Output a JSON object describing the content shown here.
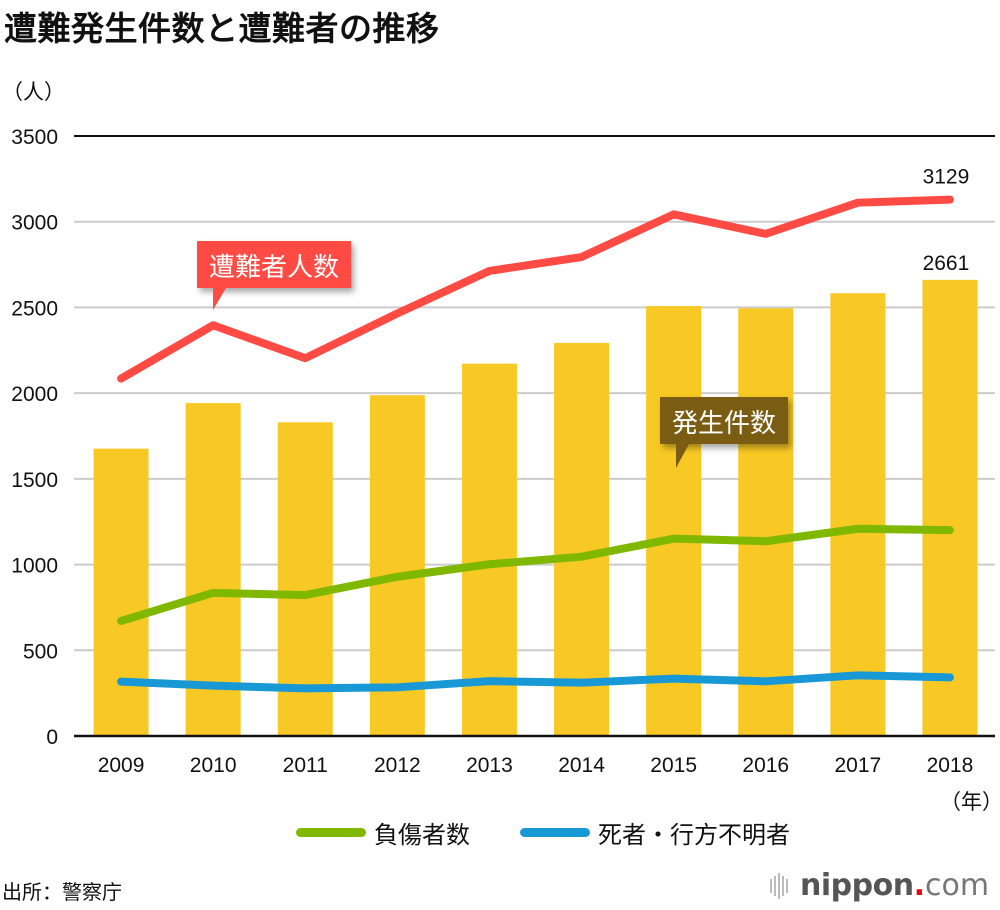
{
  "title": "遭難発生件数と遭難者の推移",
  "y_unit": "（人）",
  "x_unit": "（年）",
  "source": "出所：警察庁",
  "logo": {
    "name": "nippon",
    "dot": ".",
    "suffix": "com",
    "icon": "sound-bars-icon"
  },
  "colors": {
    "bars": "#f8c924",
    "victims_line": "#ff4b44",
    "injured_line": "#80b800",
    "dead_missing_line": "#1899d6",
    "incidents_callout": "#7b5c13",
    "victims_callout": "#ff4b44",
    "gridline": "#cccccc",
    "axis": "#111111"
  },
  "callouts": {
    "victims": "遭難者人数",
    "incidents": "発生件数"
  },
  "chart_data": {
    "type": "bar",
    "title": "遭難発生件数と遭難者の推移",
    "xlabel": "（年）",
    "ylabel": "（人）",
    "ylim": [
      0,
      3500
    ],
    "yticks": [
      0,
      500,
      1000,
      1500,
      2000,
      2500,
      3000,
      3500
    ],
    "grid": true,
    "legend_position": "bottom",
    "categories": [
      "2009",
      "2010",
      "2011",
      "2012",
      "2013",
      "2014",
      "2015",
      "2016",
      "2017",
      "2018"
    ],
    "series": [
      {
        "name": "発生件数",
        "type": "bar",
        "values": [
          1676,
          1942,
          1830,
          1988,
          2172,
          2293,
          2508,
          2495,
          2583,
          2661
        ]
      },
      {
        "name": "遭難者人数",
        "type": "line",
        "values": [
          2085,
          2396,
          2204,
          2465,
          2713,
          2794,
          3043,
          2929,
          3111,
          3129
        ]
      },
      {
        "name": "負傷者数",
        "type": "line",
        "values": [
          671,
          835,
          822,
          929,
          1002,
          1046,
          1151,
          1136,
          1209,
          1201
        ]
      },
      {
        "name": "死者・行方不明者",
        "type": "line",
        "values": [
          317,
          294,
          278,
          284,
          320,
          311,
          335,
          319,
          354,
          342
        ]
      }
    ],
    "data_labels": [
      {
        "series": "遭難者人数",
        "category": "2018",
        "text": "3129"
      },
      {
        "series": "発生件数",
        "category": "2018",
        "text": "2661"
      }
    ],
    "legend": [
      "負傷者数",
      "死者・行方不明者"
    ]
  }
}
